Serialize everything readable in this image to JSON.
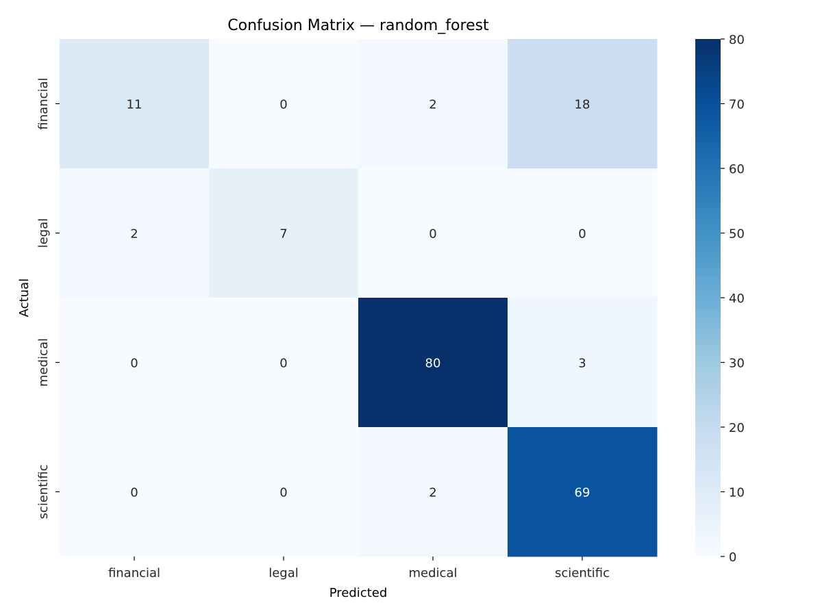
{
  "chart_data": {
    "type": "heatmap",
    "title": "Confusion Matrix — random_forest",
    "xlabel": "Predicted",
    "ylabel": "Actual",
    "x_categories": [
      "financial",
      "legal",
      "medical",
      "scientific"
    ],
    "y_categories": [
      "financial",
      "legal",
      "medical",
      "scientific"
    ],
    "values": [
      [
        11,
        0,
        2,
        18
      ],
      [
        2,
        7,
        0,
        0
      ],
      [
        0,
        0,
        80,
        3
      ],
      [
        0,
        0,
        2,
        69
      ]
    ],
    "colorbar": {
      "min": 0,
      "max": 80,
      "ticks": [
        0,
        10,
        20,
        30,
        40,
        50,
        60,
        70,
        80
      ]
    },
    "colormap": [
      "#f7fbff",
      "#deebf7",
      "#c6dbef",
      "#9ecae1",
      "#6baed6",
      "#4292c6",
      "#2171b5",
      "#08519c",
      "#08306b"
    ]
  }
}
